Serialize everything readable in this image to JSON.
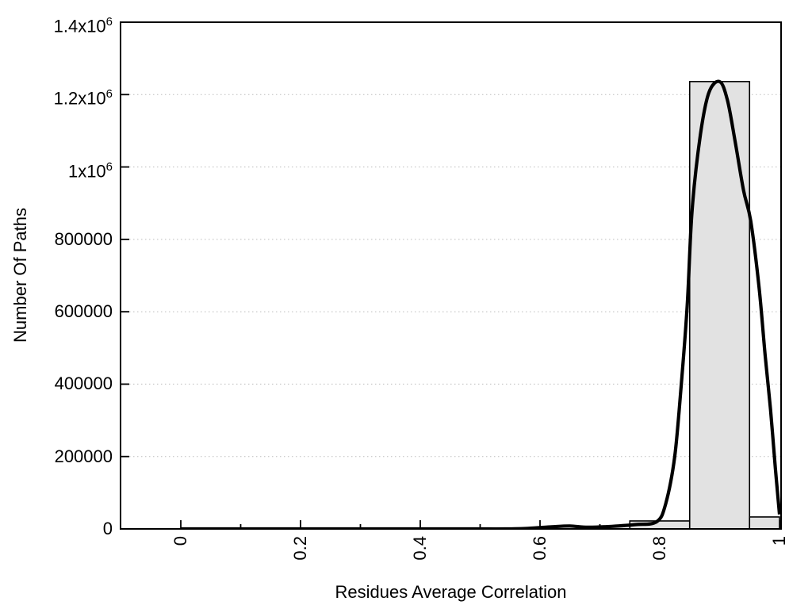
{
  "chart_data": {
    "type": "bar",
    "subtype": "histogram-with-smoothed-curve",
    "title": "",
    "xlabel": "Residues Average Correlation",
    "ylabel": "Number Of Paths",
    "xlim": [
      -0.1,
      1.0
    ],
    "ylim": [
      0,
      1400000
    ],
    "grid": {
      "horizontal": true,
      "vertical": false,
      "style": "dotted"
    },
    "legend": "none",
    "x_axis": {
      "major_ticks": [
        0,
        0.2,
        0.4,
        0.6,
        0.8,
        1.0
      ],
      "major_tick_labels": [
        "0",
        "0.2",
        "0.4",
        "0.6",
        "0.8",
        "1"
      ],
      "minor_ticks": [
        0.1,
        0.3,
        0.5,
        0.7,
        0.9
      ],
      "label_rotation_deg": -90
    },
    "y_axis": {
      "tick_values": [
        0,
        200000,
        400000,
        600000,
        800000,
        1000000,
        1200000,
        1400000
      ],
      "tick_labels": [
        "0",
        "200000",
        "400000",
        "600000",
        "800000",
        "1x10^6",
        "1.2x10^6",
        "1.4x10^6"
      ]
    },
    "bars": [
      {
        "x_start": 0.75,
        "x_end": 0.85,
        "value": 22000
      },
      {
        "x_start": 0.85,
        "x_end": 0.95,
        "value": 1236000
      },
      {
        "x_start": 0.95,
        "x_end": 1.0,
        "value": 33000
      }
    ],
    "curve": {
      "name": "smoothed-path-distribution",
      "points": [
        [
          0.0,
          0
        ],
        [
          0.05,
          0
        ],
        [
          0.1,
          0
        ],
        [
          0.15,
          0
        ],
        [
          0.2,
          0
        ],
        [
          0.25,
          0
        ],
        [
          0.3,
          0
        ],
        [
          0.35,
          0
        ],
        [
          0.4,
          0
        ],
        [
          0.45,
          0
        ],
        [
          0.5,
          0
        ],
        [
          0.54,
          0
        ],
        [
          0.58,
          1500
        ],
        [
          0.62,
          6000
        ],
        [
          0.65,
          8000
        ],
        [
          0.68,
          4500
        ],
        [
          0.72,
          7000
        ],
        [
          0.76,
          12000
        ],
        [
          0.795,
          20000
        ],
        [
          0.81,
          70000
        ],
        [
          0.825,
          200000
        ],
        [
          0.836,
          400000
        ],
        [
          0.846,
          620000
        ],
        [
          0.854,
          880000
        ],
        [
          0.868,
          1090000
        ],
        [
          0.882,
          1205000
        ],
        [
          0.9,
          1236000
        ],
        [
          0.913,
          1185000
        ],
        [
          0.926,
          1070000
        ],
        [
          0.94,
          935000
        ],
        [
          0.952,
          850000
        ],
        [
          0.966,
          666000
        ],
        [
          0.976,
          480000
        ],
        [
          0.985,
          330000
        ],
        [
          0.993,
          170000
        ],
        [
          1.0,
          40000
        ]
      ]
    },
    "colors": {
      "background": "#ffffff",
      "bar_fill": "#e2e2e2",
      "bar_border": "#000000",
      "curve": "#000000",
      "grid": "#bdbdbd",
      "axis": "#000000",
      "text": "#000000"
    }
  }
}
